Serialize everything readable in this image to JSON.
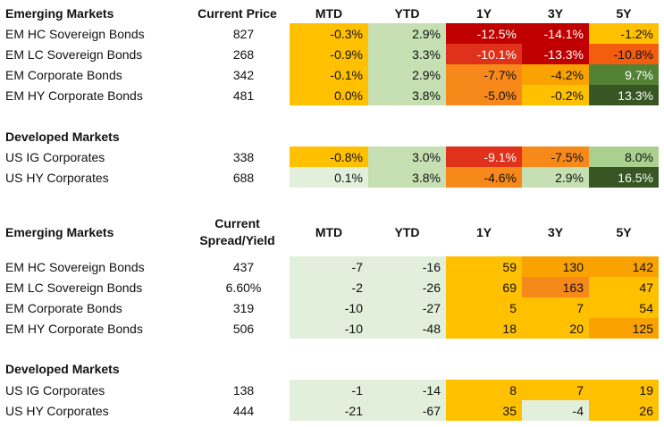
{
  "colors": {
    "deep_red": "#c00000",
    "red": "#e0311a",
    "red_orange": "#f25d0e",
    "orange": "#f7891a",
    "amber": "#f9a200",
    "yellow": "#ffc000",
    "light_green": "#c6e0b4",
    "pale_green": "#e2efda",
    "mid_green": "#548235",
    "dark_green": "#375623"
  },
  "section1": {
    "title": "Emerging Markets",
    "headers": [
      "Current Price",
      "MTD",
      "YTD",
      "1Y",
      "3Y",
      "5Y"
    ],
    "rows": [
      {
        "name": "EM HC Sovereign Bonds",
        "price": "827",
        "cells": [
          {
            "v": "-0.3%",
            "bg": "#ffc000"
          },
          {
            "v": "2.9%",
            "bg": "#c6e0b4"
          },
          {
            "v": "-12.5%",
            "bg": "#c00000",
            "light": true
          },
          {
            "v": "-14.1%",
            "bg": "#c00000",
            "light": true
          },
          {
            "v": "-1.2%",
            "bg": "#ffc000"
          }
        ]
      },
      {
        "name": "EM LC Sovereign Bonds",
        "price": "268",
        "cells": [
          {
            "v": "-0.9%",
            "bg": "#ffc000"
          },
          {
            "v": "3.3%",
            "bg": "#c6e0b4"
          },
          {
            "v": "-10.1%",
            "bg": "#e0311a",
            "light": true
          },
          {
            "v": "-13.3%",
            "bg": "#c00000",
            "light": true
          },
          {
            "v": "-10.8%",
            "bg": "#f25d0e"
          }
        ]
      },
      {
        "name": "EM Corporate Bonds",
        "price": "342",
        "cells": [
          {
            "v": "-0.1%",
            "bg": "#ffc000"
          },
          {
            "v": "2.9%",
            "bg": "#c6e0b4"
          },
          {
            "v": "-7.7%",
            "bg": "#f7891a"
          },
          {
            "v": "-4.2%",
            "bg": "#f9a200"
          },
          {
            "v": "9.7%",
            "bg": "#548235",
            "light": true
          }
        ]
      },
      {
        "name": "EM HY Corporate Bonds",
        "price": "481",
        "cells": [
          {
            "v": "0.0%",
            "bg": "#ffc000"
          },
          {
            "v": "3.8%",
            "bg": "#c6e0b4"
          },
          {
            "v": "-5.0%",
            "bg": "#f7891a"
          },
          {
            "v": "-0.2%",
            "bg": "#ffc000"
          },
          {
            "v": "13.3%",
            "bg": "#375623",
            "light": true
          }
        ]
      }
    ]
  },
  "section2": {
    "title": "Developed Markets",
    "rows": [
      {
        "name": "US IG Corporates",
        "price": "338",
        "cells": [
          {
            "v": "-0.8%",
            "bg": "#ffc000"
          },
          {
            "v": "3.0%",
            "bg": "#c6e0b4"
          },
          {
            "v": "-9.1%",
            "bg": "#e0311a",
            "light": true
          },
          {
            "v": "-7.5%",
            "bg": "#f7891a"
          },
          {
            "v": "8.0%",
            "bg": "#a9d08e"
          }
        ]
      },
      {
        "name": "US HY Corporates",
        "price": "688",
        "cells": [
          {
            "v": "0.1%",
            "bg": "#e2efda"
          },
          {
            "v": "3.8%",
            "bg": "#c6e0b4"
          },
          {
            "v": "-4.6%",
            "bg": "#f7891a"
          },
          {
            "v": "2.9%",
            "bg": "#c6e0b4"
          },
          {
            "v": "16.5%",
            "bg": "#375623",
            "light": true
          }
        ]
      }
    ]
  },
  "section3": {
    "title": "Emerging Markets",
    "header_line1": "Current",
    "header_line2": "Spread/Yield",
    "headers": [
      "MTD",
      "YTD",
      "1Y",
      "3Y",
      "5Y"
    ],
    "rows": [
      {
        "name": "EM HC Sovereign Bonds",
        "price": "437",
        "cells": [
          {
            "v": "-7",
            "bg": "#e2efda"
          },
          {
            "v": "-16",
            "bg": "#e2efda"
          },
          {
            "v": "59",
            "bg": "#ffc000"
          },
          {
            "v": "130",
            "bg": "#f9a200"
          },
          {
            "v": "142",
            "bg": "#f9a200"
          }
        ]
      },
      {
        "name": "EM LC Sovereign Bonds",
        "price": "6.60%",
        "cells": [
          {
            "v": "-2",
            "bg": "#e2efda"
          },
          {
            "v": "-26",
            "bg": "#e2efda"
          },
          {
            "v": "69",
            "bg": "#ffc000"
          },
          {
            "v": "163",
            "bg": "#f7891a"
          },
          {
            "v": "47",
            "bg": "#ffc000"
          }
        ]
      },
      {
        "name": "EM Corporate Bonds",
        "price": "319",
        "cells": [
          {
            "v": "-10",
            "bg": "#e2efda"
          },
          {
            "v": "-27",
            "bg": "#e2efda"
          },
          {
            "v": "5",
            "bg": "#ffc000"
          },
          {
            "v": "7",
            "bg": "#ffc000"
          },
          {
            "v": "54",
            "bg": "#ffc000"
          }
        ]
      },
      {
        "name": "EM HY Corporate Bonds",
        "price": "506",
        "cells": [
          {
            "v": "-10",
            "bg": "#e2efda"
          },
          {
            "v": "-48",
            "bg": "#e2efda"
          },
          {
            "v": "18",
            "bg": "#ffc000"
          },
          {
            "v": "20",
            "bg": "#ffc000"
          },
          {
            "v": "125",
            "bg": "#f9a200"
          }
        ]
      }
    ]
  },
  "section4": {
    "title": "Developed Markets",
    "rows": [
      {
        "name": "US IG Corporates",
        "price": "138",
        "cells": [
          {
            "v": "-1",
            "bg": "#e2efda"
          },
          {
            "v": "-14",
            "bg": "#e2efda"
          },
          {
            "v": "8",
            "bg": "#ffc000"
          },
          {
            "v": "7",
            "bg": "#ffc000"
          },
          {
            "v": "19",
            "bg": "#ffc000"
          }
        ]
      },
      {
        "name": "US HY Corporates",
        "price": "444",
        "cells": [
          {
            "v": "-21",
            "bg": "#e2efda"
          },
          {
            "v": "-67",
            "bg": "#e2efda"
          },
          {
            "v": "35",
            "bg": "#ffc000"
          },
          {
            "v": "-4",
            "bg": "#e2efda"
          },
          {
            "v": "26",
            "bg": "#ffc000"
          }
        ]
      }
    ]
  }
}
